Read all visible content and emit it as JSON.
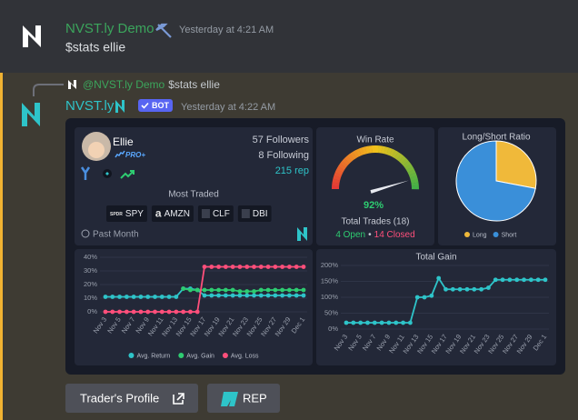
{
  "messages": [
    {
      "author": "NVST.ly Demo",
      "timestamp": "Yesterday at 4:21 AM",
      "content": "$stats ellie"
    },
    {
      "reply": {
        "author": "@NVST.ly Demo",
        "content": "$stats ellie"
      },
      "author": "NVST.ly",
      "badge": "BOT",
      "timestamp": "Yesterday at 4:22 AM"
    }
  ],
  "profile": {
    "name": "Ellie",
    "tier": "PRO+",
    "followers": "57 Followers",
    "following": "8 Following",
    "rep": "215 rep",
    "most_traded_title": "Most Traded",
    "tickers": [
      {
        "logo": "SPDR",
        "symbol": "SPY"
      },
      {
        "logo": "a",
        "symbol": "AMZN"
      },
      {
        "logo": "",
        "symbol": "CLF"
      },
      {
        "logo": "",
        "symbol": "DBI"
      }
    ],
    "period": "Past Month"
  },
  "trades": {
    "total": "Total Trades (18)",
    "open": "4 Open",
    "separator": "•",
    "closed": "14 Closed"
  },
  "buttons": [
    "Trader's Profile",
    "REP"
  ],
  "chart_data": [
    {
      "type": "gauge",
      "title": "Win Rate",
      "value": 92,
      "value_label": "92%",
      "ylim": [
        0,
        100
      ]
    },
    {
      "type": "pie",
      "title": "Long/Short Ratio",
      "categories": [
        "Long",
        "Short"
      ],
      "values": [
        28,
        72
      ],
      "colors": [
        "#f0b93a",
        "#3a8fd9"
      ]
    },
    {
      "type": "line",
      "categories": [
        "Nov 3",
        null,
        "Nov 5",
        null,
        "Nov 7",
        null,
        "Nov 9",
        null,
        "Nov 11",
        null,
        "Nov 13",
        null,
        "Nov 15",
        null,
        "Nov 17",
        null,
        "Nov 19",
        null,
        "Nov 21",
        null,
        "Nov 23",
        null,
        "Nov 25",
        null,
        "Nov 27",
        null,
        "Nov 29",
        null,
        "Dec 1"
      ],
      "series": [
        {
          "name": "Avg. Return",
          "color": "#2ec4c9",
          "values": [
            11,
            11,
            11,
            11,
            11,
            11,
            11,
            11,
            11,
            11,
            11,
            17,
            17,
            16,
            12,
            12,
            12,
            12,
            12,
            12,
            12,
            12,
            12,
            12,
            12,
            12,
            12,
            12,
            12
          ]
        },
        {
          "name": "Avg. Gain",
          "color": "#2ecc71",
          "values": [
            null,
            null,
            null,
            null,
            null,
            null,
            null,
            null,
            null,
            null,
            null,
            17,
            16,
            16,
            16,
            16,
            16,
            16,
            16,
            15,
            15,
            15,
            16,
            16,
            16,
            16,
            16,
            16,
            16
          ]
        },
        {
          "name": "Avg. Loss",
          "color": "#ff4f7b",
          "values": [
            0,
            0,
            0,
            0,
            0,
            0,
            0,
            0,
            0,
            0,
            0,
            0,
            0,
            0,
            33,
            33,
            33,
            33,
            33,
            33,
            33,
            33,
            33,
            33,
            33,
            33,
            33,
            33,
            33
          ]
        }
      ],
      "ylim": [
        0,
        40
      ],
      "yticks": [
        {
          "value": 0,
          "label": "0%"
        },
        {
          "value": 10,
          "label": "10%"
        },
        {
          "value": 20,
          "label": "20%"
        },
        {
          "value": 30,
          "label": "30%"
        },
        {
          "value": 40,
          "label": "40%"
        }
      ],
      "grid": true,
      "legend": "bottom"
    },
    {
      "type": "line",
      "title": "Total Gain",
      "categories": [
        "Nov 3",
        null,
        "Nov 5",
        null,
        "Nov 7",
        null,
        "Nov 9",
        null,
        "Nov 11",
        null,
        "Nov 13",
        null,
        "Nov 15",
        null,
        "Nov 17",
        null,
        "Nov 19",
        null,
        "Nov 21",
        null,
        "Nov 23",
        null,
        "Nov 25",
        null,
        "Nov 27",
        null,
        "Nov 29",
        null,
        "Dec 1"
      ],
      "series": [
        {
          "color": "#2ec4c9",
          "values": [
            20,
            20,
            20,
            20,
            20,
            20,
            20,
            20,
            20,
            20,
            100,
            100,
            105,
            160,
            125,
            125,
            125,
            125,
            125,
            125,
            130,
            155,
            155,
            155,
            155,
            155,
            155,
            155,
            155
          ]
        }
      ],
      "ylim": [
        0,
        200
      ],
      "yticks": [
        {
          "value": 0,
          "label": "0%"
        },
        {
          "value": 50,
          "label": "50%"
        },
        {
          "value": 100,
          "label": "100%"
        },
        {
          "value": 150,
          "label": "150%"
        },
        {
          "value": 200,
          "label": "200%"
        }
      ],
      "grid": true
    }
  ]
}
